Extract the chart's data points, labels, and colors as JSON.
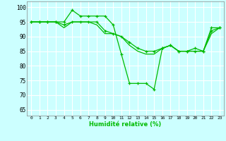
{
  "title": "",
  "xlabel": "Humidité relative (%)",
  "background_color": "#ccffff",
  "grid_color": "#ffffff",
  "line_color": "#00bb00",
  "xlim": [
    -0.5,
    23.5
  ],
  "ylim": [
    63,
    102
  ],
  "yticks": [
    65,
    70,
    75,
    80,
    85,
    90,
    95,
    100
  ],
  "xticks": [
    0,
    1,
    2,
    3,
    4,
    5,
    6,
    7,
    8,
    9,
    10,
    11,
    12,
    13,
    14,
    15,
    16,
    17,
    18,
    19,
    20,
    21,
    22,
    23
  ],
  "line1_y": [
    95,
    95,
    95,
    95,
    95,
    99,
    97,
    97,
    97,
    97,
    94,
    84,
    74,
    74,
    74,
    72,
    86,
    87,
    85,
    85,
    86,
    85,
    93,
    93
  ],
  "line2_y": [
    95,
    95,
    95,
    95,
    94,
    95,
    95,
    95,
    95,
    92,
    91,
    90,
    88,
    86,
    85,
    85,
    86,
    87,
    85,
    85,
    85,
    85,
    92,
    93
  ],
  "line3_y": [
    95,
    95,
    95,
    95,
    93,
    95,
    95,
    95,
    94,
    91,
    91,
    90,
    87,
    85,
    84,
    84,
    86,
    87,
    85,
    85,
    85,
    85,
    91,
    93
  ]
}
